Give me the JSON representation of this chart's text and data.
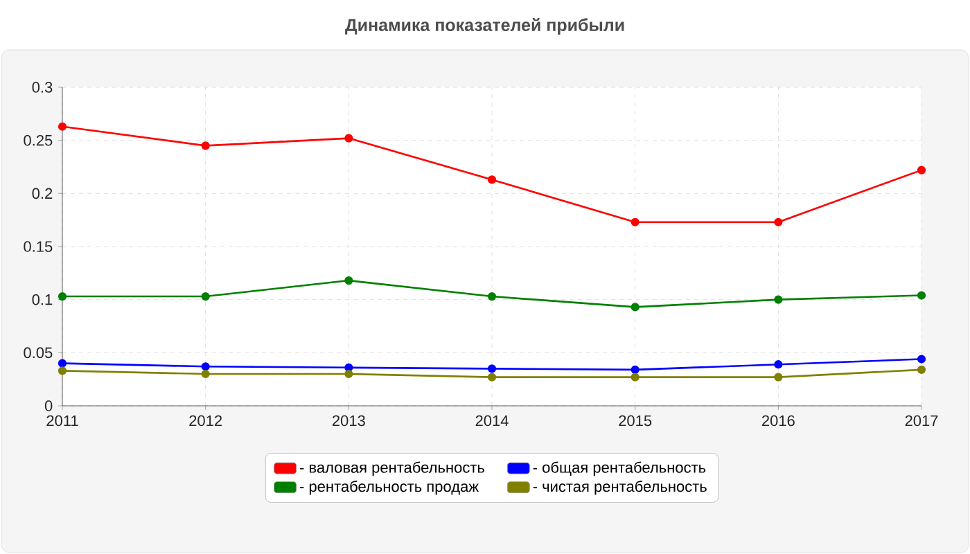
{
  "chart_data": {
    "type": "line",
    "title": "Динамика показателей прибыли",
    "x": [
      2011,
      2012,
      2013,
      2014,
      2015,
      2016,
      2017
    ],
    "xlim": [
      2011,
      2017
    ],
    "xticks": [
      2011,
      2012,
      2013,
      2014,
      2015,
      2016,
      2017
    ],
    "ylim": [
      0,
      0.3
    ],
    "yticks": [
      0,
      0.05,
      0.1,
      0.15,
      0.2,
      0.25,
      0.3
    ],
    "series": [
      {
        "name": "- валовая рентабельность",
        "color": "#ff0000",
        "values": [
          0.263,
          0.245,
          0.252,
          0.213,
          0.173,
          0.173,
          0.222
        ]
      },
      {
        "name": "- рентабельность продаж",
        "color": "#008000",
        "values": [
          0.103,
          0.103,
          0.118,
          0.103,
          0.093,
          0.1,
          0.104
        ]
      },
      {
        "name": "- общая рентабельность",
        "color": "#0000ff",
        "values": [
          0.04,
          0.037,
          0.036,
          0.035,
          0.034,
          0.039,
          0.044
        ]
      },
      {
        "name": "- чистая рентабельность",
        "color": "#808000",
        "values": [
          0.033,
          0.03,
          0.03,
          0.027,
          0.027,
          0.027,
          0.034
        ]
      }
    ],
    "grid": true,
    "legend": "bottom",
    "marker": "circle",
    "line_style": "solid"
  }
}
